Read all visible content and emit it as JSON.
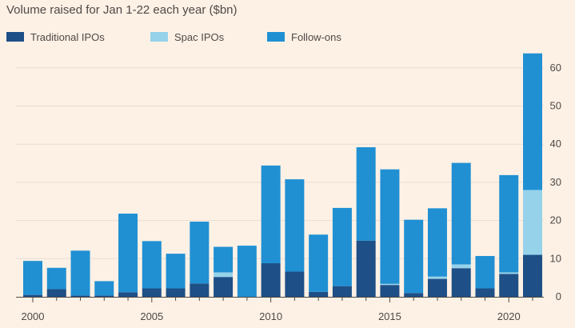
{
  "title": "Volume raised for Jan 1-22 each year ($bn)",
  "colors": {
    "background": "#fdf1e6",
    "traditional": "#1e4f86",
    "spac": "#96d2ea",
    "followons": "#2090d3",
    "grid": "#e7ddd3",
    "axis": "#4f4945"
  },
  "chart_data": {
    "type": "bar",
    "stacked": true,
    "title": "Volume raised for Jan 1-22 each year ($bn)",
    "xlabel": "",
    "ylabel": "",
    "ylim": [
      0,
      65
    ],
    "y_ticks": [
      0,
      10,
      20,
      30,
      40,
      50,
      60
    ],
    "y_axis_side": "right",
    "x_tick_labels": [
      "2000",
      "2005",
      "2010",
      "2015",
      "2020"
    ],
    "grid": true,
    "legend": "top-left",
    "categories": [
      "2000",
      "2001",
      "2002",
      "2003",
      "2004",
      "2005",
      "2006",
      "2007",
      "2008",
      "2009",
      "2010",
      "2011",
      "2012",
      "2013",
      "2014",
      "2015",
      "2016",
      "2017",
      "2018",
      "2019",
      "2020",
      "2021"
    ],
    "series": [
      {
        "name": "Traditional IPOs",
        "color": "#1e4f86",
        "values": [
          0.5,
          2,
          0.3,
          0.3,
          1.2,
          2.2,
          2.2,
          3.5,
          5.2,
          0,
          8.8,
          6.6,
          1.3,
          2.8,
          14.7,
          3.1,
          1,
          4.7,
          7.5,
          2.2,
          6,
          11
        ]
      },
      {
        "name": "Spac IPOs",
        "color": "#96d2ea",
        "values": [
          0,
          0,
          0,
          0,
          0,
          0,
          0,
          0,
          1.2,
          0,
          0,
          0,
          0,
          0,
          0,
          0.3,
          0,
          0.6,
          1,
          0,
          0.4,
          17
        ]
      },
      {
        "name": "Follow-ons",
        "color": "#2090d3",
        "values": [
          8.9,
          5.6,
          11.8,
          3.8,
          20.6,
          12.4,
          9.1,
          16.2,
          6.7,
          13.4,
          25.6,
          24.2,
          15,
          20.5,
          24.5,
          30,
          19.2,
          17.9,
          26.6,
          8.5,
          25.5,
          35.8
        ]
      }
    ]
  }
}
